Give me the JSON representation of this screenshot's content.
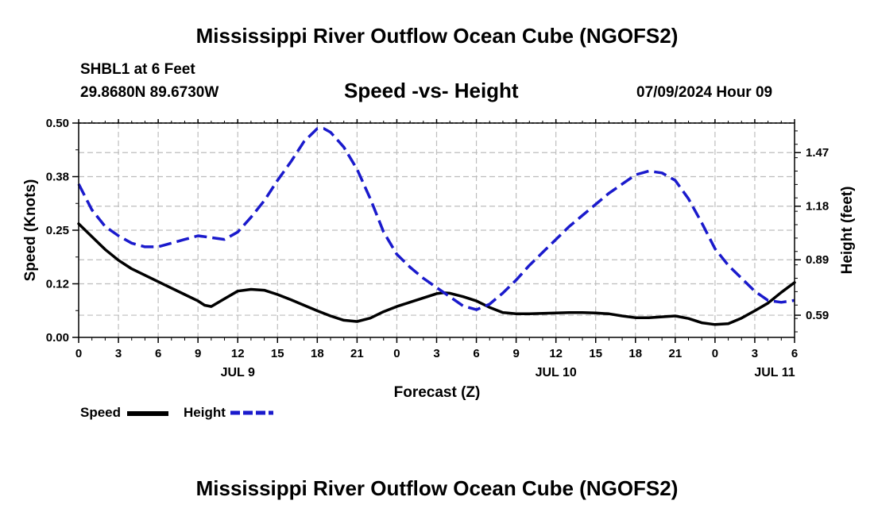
{
  "header": {
    "title": "Mississippi River Outflow Ocean Cube (NGOFS2)",
    "station": "SHBL1 at 6 Feet",
    "coords": "29.8680N  89.6730W",
    "subtitle": "Speed -vs- Height",
    "datetime": "07/09/2024 Hour 09"
  },
  "footer": {
    "title": "Mississippi River Outflow Ocean Cube (NGOFS2)"
  },
  "legend": {
    "speed_label": "Speed",
    "height_label": "Height",
    "speed_color": "#000000",
    "height_color": "#1a1acc"
  },
  "chart_data": {
    "type": "line",
    "title": "Speed -vs- Height",
    "xlabel": "Forecast (Z)",
    "ylabel": "Speed (Knots)",
    "y2label": "Height (feet)",
    "x_range_hours": [
      0,
      54
    ],
    "x_ticks": [
      {
        "h": 0,
        "label": "0"
      },
      {
        "h": 3,
        "label": "3"
      },
      {
        "h": 6,
        "label": "6"
      },
      {
        "h": 9,
        "label": "9"
      },
      {
        "h": 12,
        "label": "12"
      },
      {
        "h": 15,
        "label": "15"
      },
      {
        "h": 18,
        "label": "18"
      },
      {
        "h": 21,
        "label": "21"
      },
      {
        "h": 24,
        "label": "0"
      },
      {
        "h": 27,
        "label": "3"
      },
      {
        "h": 30,
        "label": "6"
      },
      {
        "h": 33,
        "label": "9"
      },
      {
        "h": 36,
        "label": "12"
      },
      {
        "h": 39,
        "label": "15"
      },
      {
        "h": 42,
        "label": "18"
      },
      {
        "h": 45,
        "label": "21"
      },
      {
        "h": 48,
        "label": "0"
      },
      {
        "h": 51,
        "label": "3"
      },
      {
        "h": 54,
        "label": "6"
      }
    ],
    "date_labels": [
      {
        "h": 12,
        "label": "JUL 9"
      },
      {
        "h": 36,
        "label": "JUL 10"
      },
      {
        "h": 52.5,
        "label": "JUL 11"
      }
    ],
    "ylim": [
      0,
      0.5
    ],
    "y_ticks": [
      {
        "v": 0,
        "label": "0.00"
      },
      {
        "v": 0.125,
        "label": "0.12"
      },
      {
        "v": 0.25,
        "label": "0.25"
      },
      {
        "v": 0.375,
        "label": "0.38"
      },
      {
        "v": 0.5,
        "label": "0.50"
      }
    ],
    "y2lim": [
      0.47,
      1.63
    ],
    "y2_ticks": [
      {
        "v": 0.59,
        "label": "0.59"
      },
      {
        "v": 0.89,
        "label": "0.89"
      },
      {
        "v": 1.18,
        "label": "1.18"
      },
      {
        "v": 1.47,
        "label": "1.47"
      }
    ],
    "grid": true,
    "legend_position": "bottom-left",
    "series": [
      {
        "name": "Speed",
        "axis": "left",
        "style": "solid",
        "color": "#000000",
        "x": [
          0,
          1,
          2,
          3,
          4,
          5,
          6,
          7,
          8,
          9,
          9.5,
          10,
          11,
          12,
          13,
          14,
          15,
          16,
          17,
          18,
          19,
          20,
          21,
          22,
          23,
          24,
          25,
          26,
          27,
          27.5,
          28,
          29,
          30,
          31,
          32,
          33,
          34,
          35,
          36,
          37,
          38,
          39,
          40,
          41,
          42,
          43,
          44,
          45,
          46,
          47,
          48,
          49,
          50,
          51,
          52,
          53,
          54
        ],
        "y": [
          0.265,
          0.235,
          0.205,
          0.18,
          0.16,
          0.145,
          0.13,
          0.115,
          0.1,
          0.085,
          0.075,
          0.072,
          0.09,
          0.108,
          0.112,
          0.11,
          0.1,
          0.088,
          0.075,
          0.062,
          0.05,
          0.04,
          0.037,
          0.045,
          0.06,
          0.072,
          0.082,
          0.092,
          0.102,
          0.104,
          0.103,
          0.095,
          0.085,
          0.07,
          0.058,
          0.055,
          0.055,
          0.056,
          0.057,
          0.058,
          0.058,
          0.057,
          0.055,
          0.05,
          0.046,
          0.046,
          0.048,
          0.05,
          0.044,
          0.034,
          0.03,
          0.032,
          0.045,
          0.062,
          0.08,
          0.105,
          0.128
        ]
      },
      {
        "name": "Height",
        "axis": "right",
        "style": "dashed",
        "color": "#1a1acc",
        "x": [
          0,
          1,
          2,
          3,
          4,
          5,
          6,
          7,
          8,
          9,
          10,
          11,
          12,
          13,
          14,
          15,
          16,
          17,
          18,
          18.5,
          19,
          20,
          21,
          22,
          23,
          24,
          25,
          26,
          27,
          28,
          29,
          30,
          31,
          32,
          33,
          34,
          35,
          36,
          37,
          38,
          39,
          40,
          41,
          42,
          43,
          44,
          45,
          46,
          47,
          48,
          49,
          50,
          51,
          52,
          53,
          54
        ],
        "y": [
          1.3,
          1.16,
          1.07,
          1.02,
          0.98,
          0.96,
          0.96,
          0.98,
          1.0,
          1.02,
          1.01,
          1.0,
          1.04,
          1.12,
          1.21,
          1.32,
          1.42,
          1.53,
          1.6,
          1.6,
          1.58,
          1.5,
          1.38,
          1.22,
          1.04,
          0.92,
          0.85,
          0.79,
          0.74,
          0.69,
          0.64,
          0.62,
          0.65,
          0.71,
          0.78,
          0.86,
          0.93,
          1.0,
          1.07,
          1.13,
          1.19,
          1.25,
          1.3,
          1.35,
          1.37,
          1.36,
          1.32,
          1.22,
          1.09,
          0.95,
          0.86,
          0.79,
          0.72,
          0.67,
          0.66,
          0.67
        ]
      }
    ]
  }
}
